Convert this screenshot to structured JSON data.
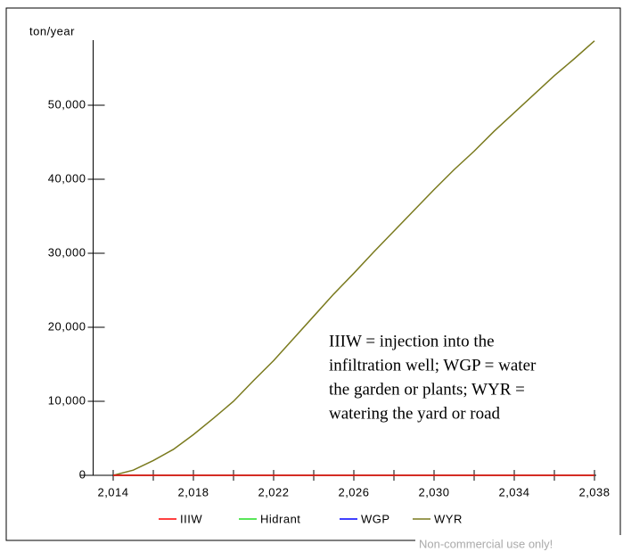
{
  "chart_data": {
    "type": "line",
    "y_label": "ton/year",
    "x": [
      2014,
      2015,
      2016,
      2017,
      2018,
      2019,
      2020,
      2021,
      2022,
      2023,
      2024,
      2025,
      2026,
      2027,
      2028,
      2029,
      2030,
      2031,
      2032,
      2033,
      2034,
      2035,
      2036,
      2037,
      2038
    ],
    "series": [
      {
        "name": "IIIW",
        "color": "#ff0000",
        "values": [
          0,
          0,
          0,
          0,
          0,
          0,
          0,
          0,
          0,
          0,
          0,
          0,
          0,
          0,
          0,
          0,
          0,
          0,
          0,
          0,
          0,
          0,
          0,
          0,
          0
        ]
      },
      {
        "name": "Hidrant",
        "color": "#22dd22",
        "values": [
          0,
          0,
          0,
          0,
          0,
          0,
          0,
          0,
          0,
          0,
          0,
          0,
          0,
          0,
          0,
          0,
          0,
          0,
          0,
          0,
          0,
          0,
          0,
          0,
          0
        ]
      },
      {
        "name": "WGP",
        "color": "#0000ff",
        "values": [
          0,
          0,
          0,
          0,
          0,
          0,
          0,
          0,
          0,
          0,
          0,
          0,
          0,
          0,
          0,
          0,
          0,
          0,
          0,
          0,
          0,
          0,
          0,
          0,
          0
        ]
      },
      {
        "name": "WYR",
        "color": "#7a7a1e",
        "values": [
          0,
          700,
          2000,
          3500,
          5500,
          7700,
          10000,
          12800,
          15500,
          18500,
          21500,
          24500,
          27300,
          30200,
          33000,
          35800,
          38600,
          41300,
          43800,
          46500,
          49000,
          51500,
          54000,
          56300,
          58700
        ]
      }
    ],
    "xlim": [
      2013,
      2038
    ],
    "ylim": [
      0,
      58800
    ],
    "xticks": [
      {
        "value": 2014,
        "label": "2,014"
      },
      {
        "value": 2018,
        "label": "2,018"
      },
      {
        "value": 2022,
        "label": "2,022"
      },
      {
        "value": 2026,
        "label": "2,026"
      },
      {
        "value": 2030,
        "label": "2,030"
      },
      {
        "value": 2034,
        "label": "2,034"
      },
      {
        "value": 2038,
        "label": "2,038"
      }
    ],
    "x_minor_ticks": [
      2016,
      2020,
      2024,
      2028,
      2032,
      2036
    ],
    "yticks": [
      0,
      {
        "value": 10000,
        "label": "10,000"
      },
      {
        "value": 20000,
        "label": "20,000"
      },
      {
        "value": 30000,
        "label": "30,000"
      },
      {
        "value": 40000,
        "label": "40,000"
      },
      {
        "value": 50000,
        "label": "50,000"
      }
    ],
    "annotation": [
      "IIIW = injection into the",
      "infiltration well; WGP = water",
      "the garden or plants; WYR =",
      "watering the yard or road"
    ],
    "watermark": "Non-commercial use only!"
  }
}
